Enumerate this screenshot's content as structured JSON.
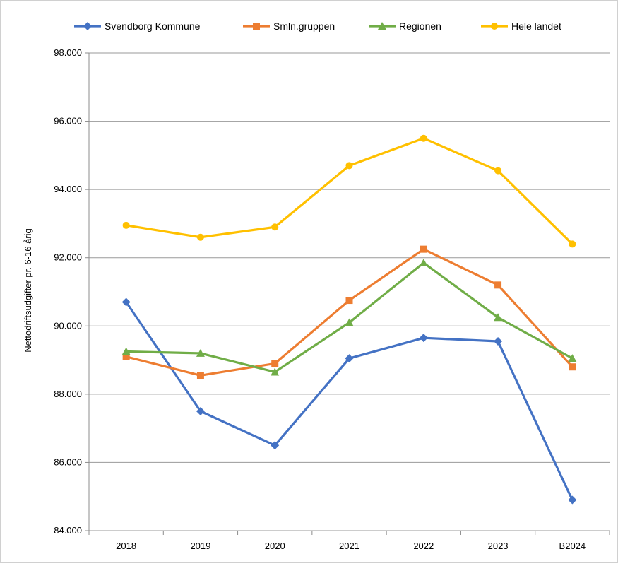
{
  "chart_data": {
    "type": "line",
    "title": "",
    "xlabel": "",
    "ylabel": "Nettodriftsudgifter pr. 6-16 årig",
    "categories": [
      "2018",
      "2019",
      "2020",
      "2021",
      "2022",
      "2023",
      "B2024"
    ],
    "ylim": [
      84000,
      98000
    ],
    "yticks": [
      84000,
      86000,
      88000,
      90000,
      92000,
      94000,
      96000,
      98000
    ],
    "ytick_labels": [
      "84.000",
      "86.000",
      "88.000",
      "90.000",
      "92.000",
      "94.000",
      "96.000",
      "98.000"
    ],
    "grid": true,
    "legend_position": "top",
    "series": [
      {
        "name": "Svendborg Kommune",
        "color": "#4472C4",
        "marker": "diamond",
        "values": [
          90700,
          87500,
          86500,
          89050,
          89650,
          89550,
          84900
        ]
      },
      {
        "name": "Smln.gruppen",
        "color": "#ED7D31",
        "marker": "square",
        "values": [
          89100,
          88550,
          88900,
          90750,
          92250,
          91200,
          88800
        ]
      },
      {
        "name": "Regionen",
        "color": "#70AD47",
        "marker": "triangle",
        "values": [
          89250,
          89200,
          88650,
          90100,
          91850,
          90250,
          89050
        ]
      },
      {
        "name": "Hele landet",
        "color": "#FFC000",
        "marker": "circle",
        "values": [
          92950,
          92600,
          92900,
          94700,
          95500,
          94550,
          92400
        ]
      }
    ]
  }
}
